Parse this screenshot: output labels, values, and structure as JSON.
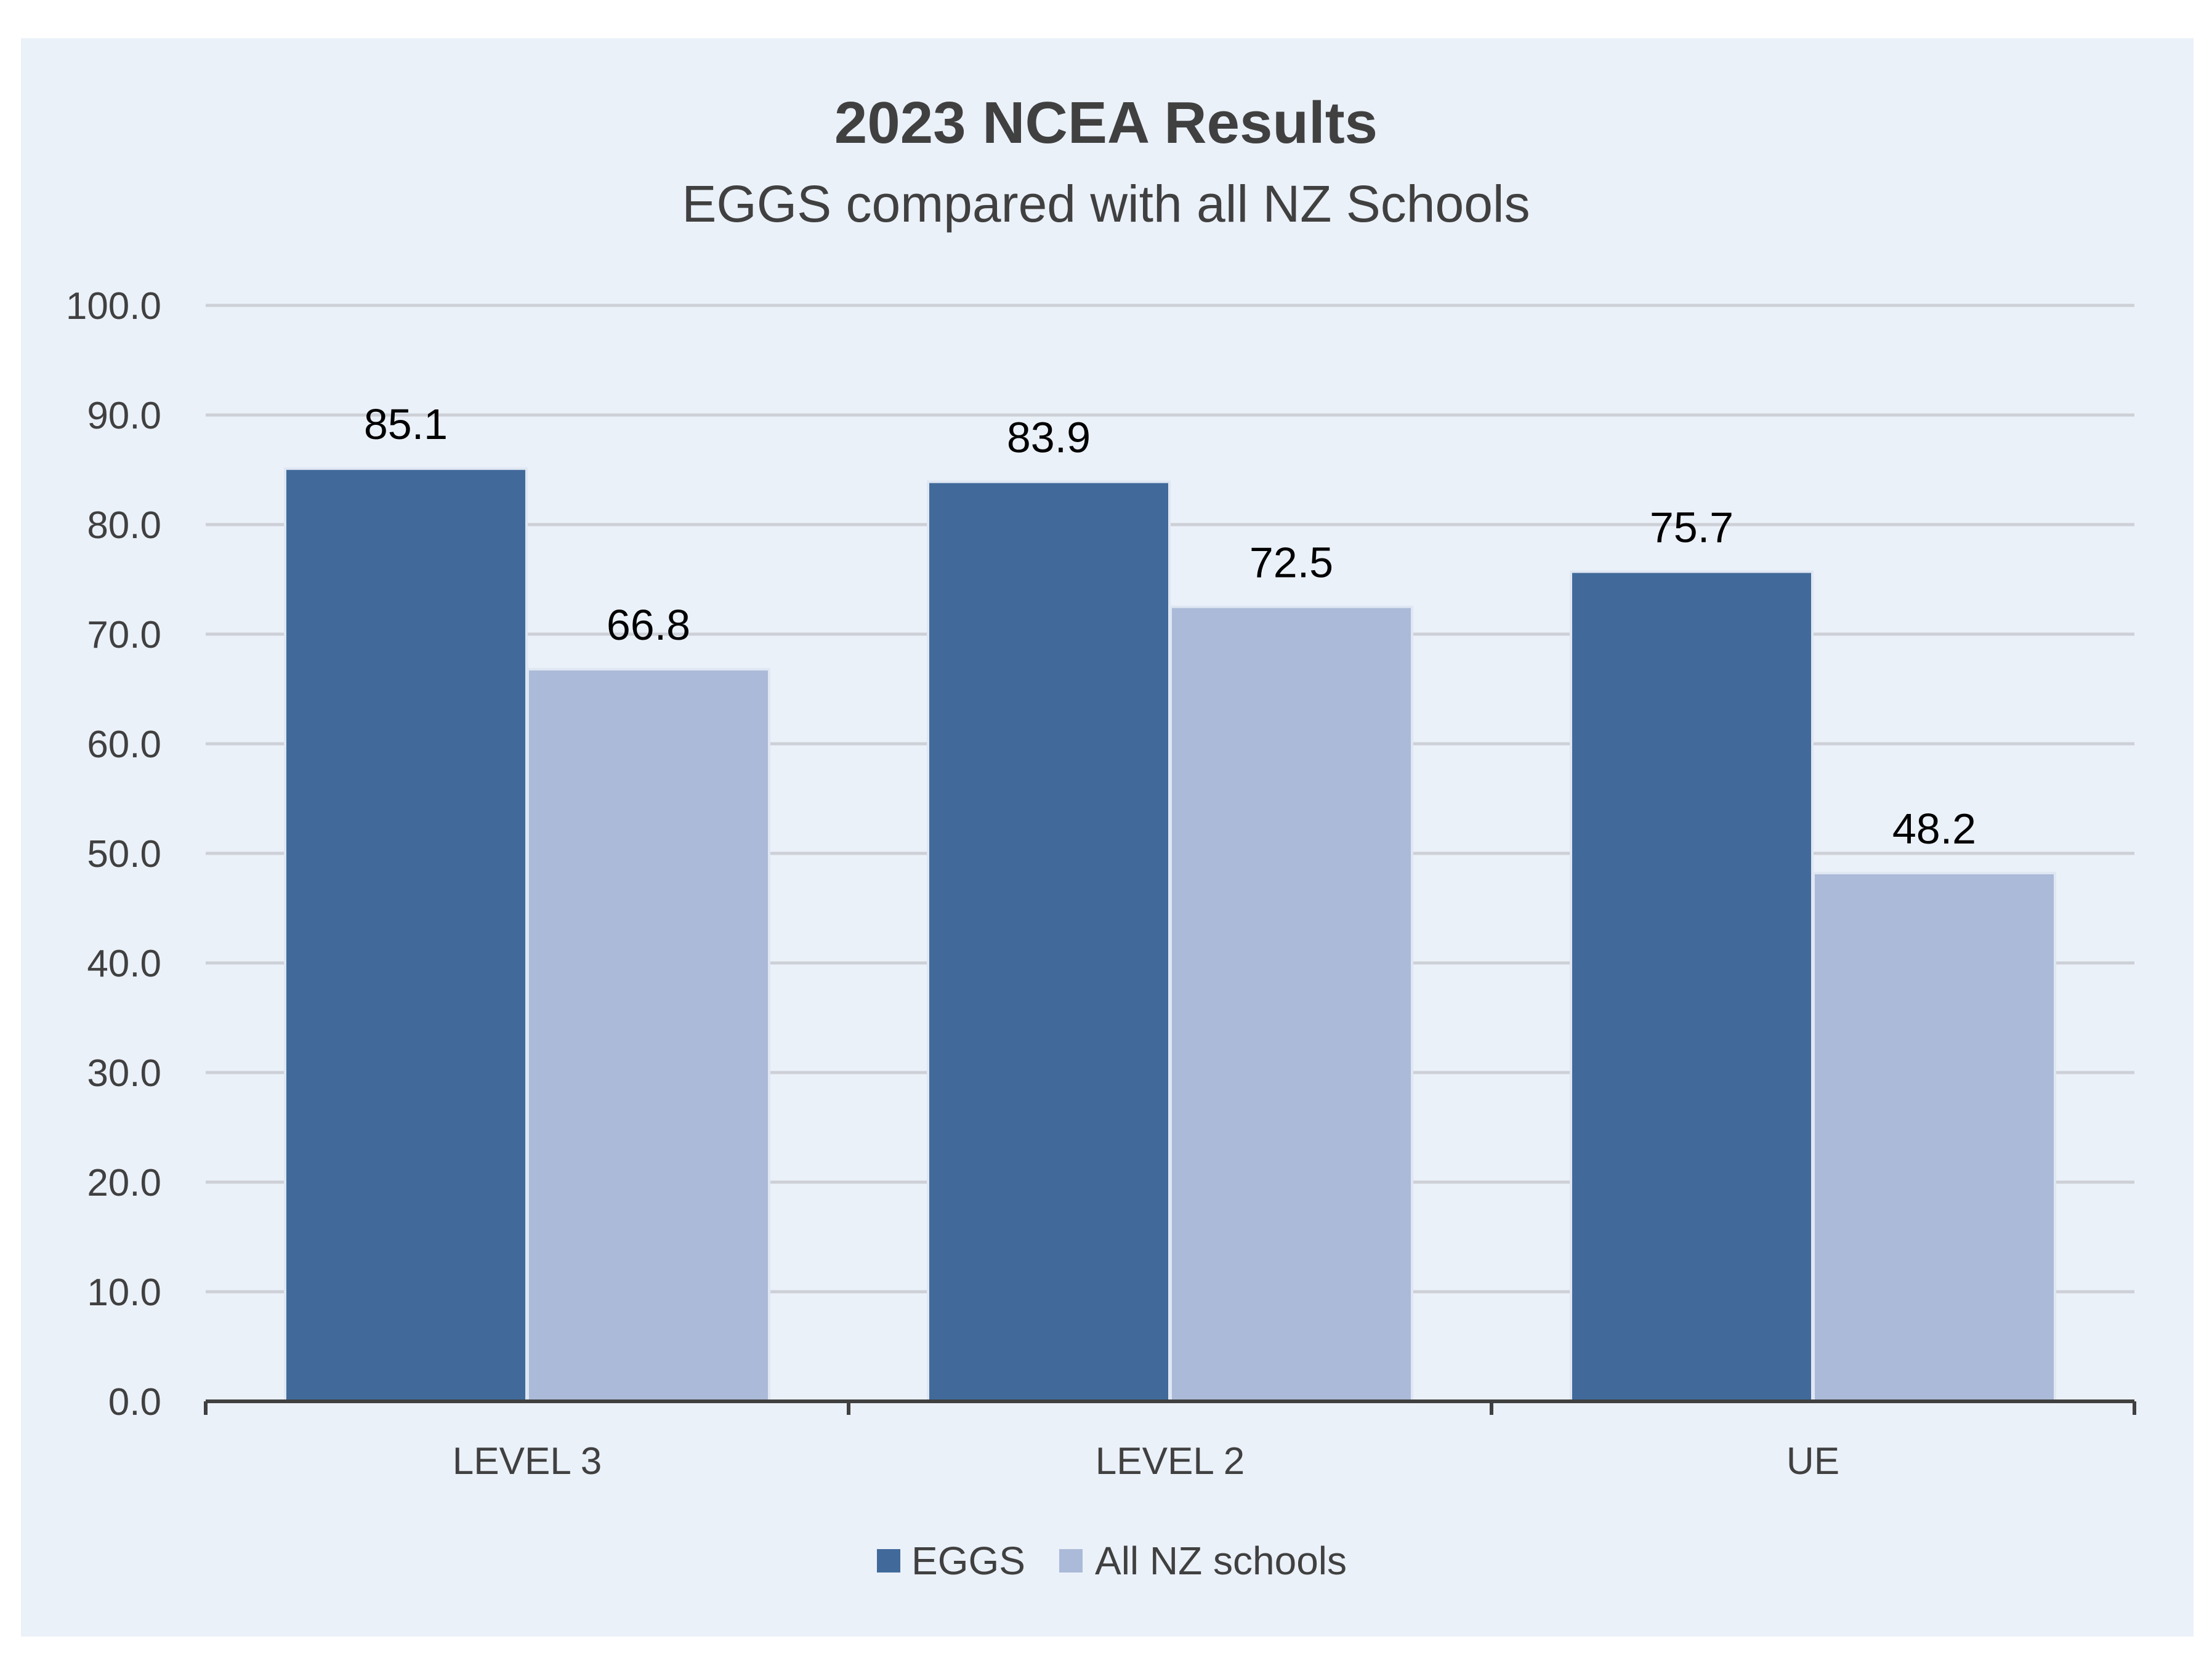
{
  "chart_data": {
    "type": "bar",
    "title": "2023 NCEA Results",
    "subtitle": "EGGS compared with all NZ Schools",
    "categories": [
      "LEVEL 3",
      "LEVEL 2",
      "UE"
    ],
    "series": [
      {
        "name": "EGGS",
        "values": [
          85.1,
          83.9,
          75.7
        ],
        "color": "#416a9b"
      },
      {
        "name": "All NZ schools",
        "values": [
          66.8,
          72.5,
          48.2
        ],
        "color": "#abbad8"
      }
    ],
    "data_labels": [
      [
        "85.1",
        "83.9",
        "75.7"
      ],
      [
        "66.8",
        "72.5",
        "48.2"
      ]
    ],
    "y_ticks": [
      "0.0",
      "10.0",
      "20.0",
      "30.0",
      "40.0",
      "50.0",
      "60.0",
      "70.0",
      "80.0",
      "90.0",
      "100.0"
    ],
    "ylim": [
      0,
      100
    ],
    "xlabel": "",
    "ylabel": "",
    "grid": true,
    "legend_position": "bottom",
    "background_color": "#ebf1f9",
    "gridline_color": "#cdd0d6",
    "axis_color": "#404040"
  }
}
